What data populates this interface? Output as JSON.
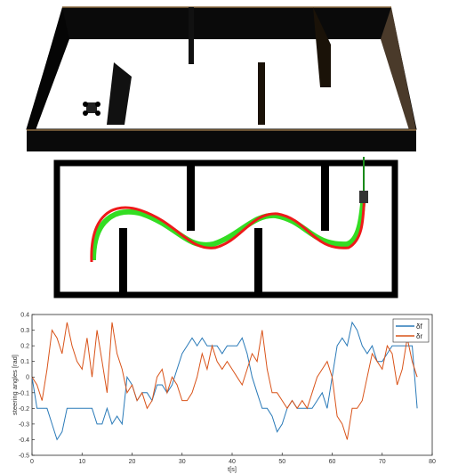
{
  "chart_data": {
    "type": "line",
    "xlabel": "t[s]",
    "ylabel": "steering angles [rad]",
    "xlim": [
      0,
      80
    ],
    "ylim": [
      -0.5,
      0.4
    ],
    "x_ticks": [
      "0",
      "10",
      "20",
      "30",
      "40",
      "50",
      "60",
      "70",
      "80"
    ],
    "y_ticks": [
      "-0.5",
      "-0.4",
      "-0.3",
      "-0.2",
      "-0.1",
      "0",
      "0.1",
      "0.2",
      "0.3",
      "0.4"
    ],
    "legend_position": "top-right",
    "grid": false,
    "x": [
      0,
      1,
      2,
      3,
      4,
      5,
      6,
      7,
      8,
      9,
      10,
      11,
      12,
      13,
      14,
      15,
      16,
      17,
      18,
      19,
      20,
      21,
      22,
      23,
      24,
      25,
      26,
      27,
      28,
      29,
      30,
      31,
      32,
      33,
      34,
      35,
      36,
      37,
      38,
      39,
      40,
      41,
      42,
      43,
      44,
      45,
      46,
      47,
      48,
      49,
      50,
      51,
      52,
      53,
      54,
      55,
      56,
      57,
      58,
      59,
      60,
      61,
      62,
      63,
      64,
      65,
      66,
      67,
      68,
      69,
      70,
      71,
      72,
      73,
      74,
      75,
      76,
      77
    ],
    "series": [
      {
        "name": "δf",
        "color": "#2a7ab8",
        "values": [
          0.0,
          -0.2,
          -0.2,
          -0.2,
          -0.3,
          -0.4,
          -0.35,
          -0.2,
          -0.2,
          -0.2,
          -0.2,
          -0.2,
          -0.2,
          -0.3,
          -0.3,
          -0.2,
          -0.3,
          -0.25,
          -0.3,
          0.0,
          -0.05,
          -0.15,
          -0.1,
          -0.1,
          -0.15,
          -0.05,
          -0.05,
          -0.1,
          -0.05,
          0.05,
          0.15,
          0.2,
          0.25,
          0.2,
          0.25,
          0.2,
          0.2,
          0.2,
          0.15,
          0.2,
          0.2,
          0.2,
          0.25,
          0.15,
          0.0,
          -0.1,
          -0.2,
          -0.2,
          -0.25,
          -0.35,
          -0.3,
          -0.2,
          -0.15,
          -0.2,
          -0.2,
          -0.2,
          -0.2,
          -0.15,
          -0.1,
          -0.2,
          0.0,
          0.2,
          0.25,
          0.2,
          0.35,
          0.3,
          0.2,
          0.15,
          0.2,
          0.1,
          0.1,
          0.15,
          0.2,
          0.2,
          0.2,
          0.2,
          0.2,
          -0.2
        ]
      },
      {
        "name": "δr",
        "color": "#d95319",
        "values": [
          0.0,
          -0.05,
          -0.15,
          0.05,
          0.3,
          0.25,
          0.15,
          0.35,
          0.2,
          0.1,
          0.05,
          0.25,
          0.0,
          0.3,
          0.1,
          -0.1,
          0.35,
          0.15,
          0.05,
          -0.1,
          -0.05,
          -0.15,
          -0.1,
          -0.2,
          -0.15,
          0.0,
          0.05,
          -0.1,
          0.0,
          -0.05,
          -0.15,
          -0.15,
          -0.1,
          0.0,
          0.15,
          0.05,
          0.2,
          0.1,
          0.05,
          0.1,
          0.05,
          0.0,
          -0.05,
          0.05,
          0.15,
          0.1,
          0.3,
          0.05,
          -0.1,
          -0.1,
          -0.15,
          -0.2,
          -0.15,
          -0.2,
          -0.15,
          -0.2,
          -0.1,
          0.0,
          0.05,
          0.1,
          0.0,
          -0.25,
          -0.3,
          -0.4,
          -0.2,
          -0.2,
          -0.15,
          0.0,
          0.15,
          0.1,
          0.05,
          0.2,
          0.15,
          -0.05,
          0.05,
          0.25,
          0.1,
          0.0
        ]
      }
    ]
  }
}
